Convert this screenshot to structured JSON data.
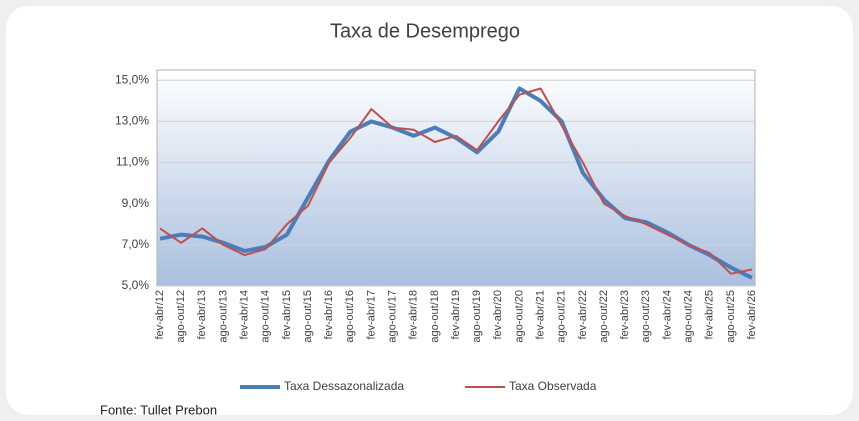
{
  "chart_data": {
    "type": "line",
    "title": "Taxa de Desemprego",
    "categories": [
      "fev-abr/12",
      "ago-out/12",
      "fev-abr/13",
      "ago-out/13",
      "fev-abr/14",
      "ago-out/14",
      "fev-abr/15",
      "ago-out/15",
      "fev-abr/16",
      "ago-out/16",
      "fev-abr/17",
      "ago-out/17",
      "fev-abr/18",
      "ago-out/18",
      "fev-abr/19",
      "ago-out/19",
      "fev-abr/20",
      "ago-out/20",
      "fev-abr/21",
      "ago-out/21",
      "fev-abr/22",
      "ago-out/22",
      "fev-abr/23",
      "ago-out/23",
      "fev-abr/24",
      "ago-out/24",
      "fev-abr/25",
      "ago-out/25",
      "fev-abr/26"
    ],
    "series": [
      {
        "name": "Taxa Dessazonalizada",
        "color": "#4a7ebb",
        "values": [
          7.3,
          7.5,
          7.4,
          7.1,
          6.7,
          6.9,
          7.5,
          9.3,
          11.1,
          12.5,
          13.0,
          12.7,
          12.3,
          12.7,
          12.2,
          11.5,
          12.5,
          14.6,
          14.0,
          13.0,
          10.5,
          9.2,
          8.3,
          8.1,
          7.6,
          7.0,
          6.5,
          5.9,
          5.4
        ]
      },
      {
        "name": "Taxa Observada",
        "color": "#c0504d",
        "values": [
          7.8,
          7.1,
          7.8,
          7.0,
          6.5,
          6.8,
          8.0,
          8.9,
          11.0,
          12.2,
          13.6,
          12.7,
          12.6,
          12.0,
          12.3,
          11.6,
          13.0,
          14.3,
          14.6,
          12.8,
          11.0,
          9.0,
          8.4,
          8.0,
          7.5,
          7.0,
          6.6,
          5.6,
          5.8
        ]
      }
    ],
    "ylim": [
      5,
      15.5
    ],
    "yticks": [
      {
        "value": 5,
        "label": "5,0%"
      },
      {
        "value": 7,
        "label": "7,0%"
      },
      {
        "value": 9,
        "label": "9,0%"
      },
      {
        "value": 11,
        "label": "11,0%"
      },
      {
        "value": 13,
        "label": "13,0%"
      },
      {
        "value": 15,
        "label": "15,0%"
      }
    ],
    "grid": true,
    "legend": "bottom"
  },
  "source": "Fonte: Tullet Prebon"
}
